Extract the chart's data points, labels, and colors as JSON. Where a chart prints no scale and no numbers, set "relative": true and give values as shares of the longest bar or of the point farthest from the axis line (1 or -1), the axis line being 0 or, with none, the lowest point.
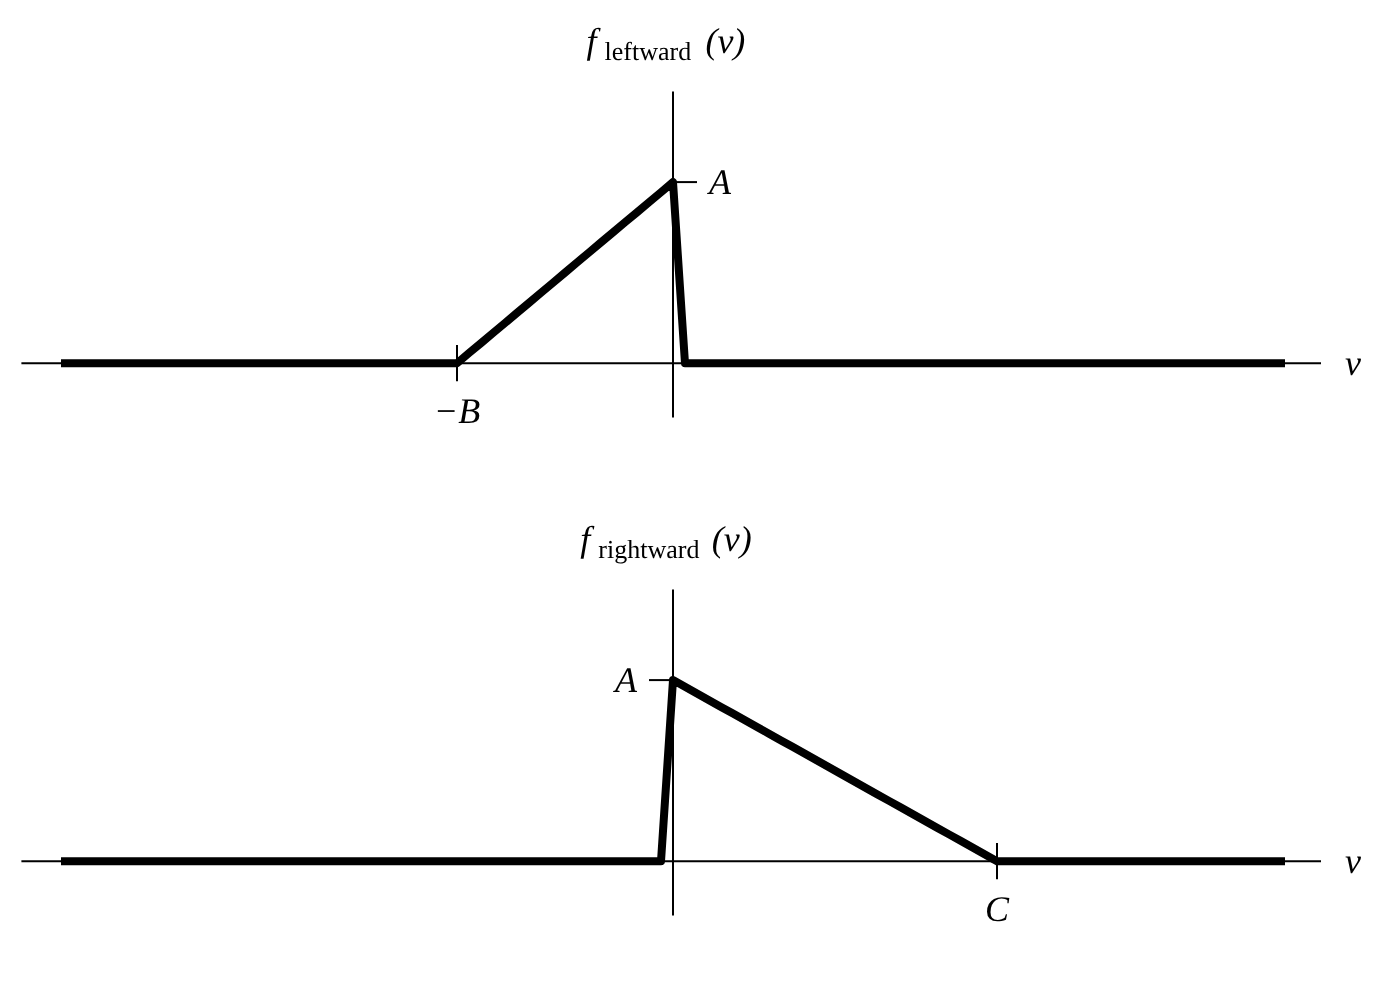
{
  "chart_data": [
    {
      "type": "line",
      "relative": true,
      "ylabel": "f$_{leftward}$(v)",
      "xlabel": "v",
      "annotations": [
        "A",
        "−B"
      ],
      "categories": [
        null,
        null,
        null,
        null,
        null,
        null,
        null,
        null,
        null,
        null,
        null,
        null,
        null,
        null,
        null,
        null,
        null,
        null,
        null,
        null,
        null,
        null,
        null,
        null,
        null,
        null,
        null,
        null,
        null,
        null,
        null,
        null,
        null,
        null,
        null,
        null,
        null,
        null,
        null,
        null,
        null,
        null,
        null,
        null,
        null,
        null,
        null,
        null,
        null,
        null,
        null,
        null,
        null,
        null,
        null,
        null,
        null,
        null,
        null,
        null,
        null,
        null,
        null,
        null,
        null,
        null,
        null,
        null,
        null,
        null,
        null,
        null,
        null,
        null,
        null,
        null,
        null,
        null,
        null,
        null,
        null,
        null,
        null,
        null,
        null,
        null,
        null,
        null,
        null,
        null,
        null,
        null,
        null,
        null,
        null,
        null,
        null,
        null,
        null,
        null,
        null,
        null,
        null
      ],
      "series": [
        {
          "color": "#000000",
          "values": [
            0,
            0,
            0,
            0,
            0,
            0,
            0,
            0,
            0,
            0,
            0,
            0,
            0,
            0,
            0,
            0,
            0,
            0,
            0,
            0,
            0,
            0,
            0,
            0,
            0,
            0,
            0,
            0,
            0,
            0,
            0,
            0,
            0,
            0,
            0.056,
            0.111,
            0.167,
            0.222,
            0.278,
            0.333,
            0.389,
            0.444,
            0.5,
            0.556,
            0.611,
            0.667,
            0.722,
            0.778,
            0.833,
            0.889,
            0.944,
            1,
            0,
            0,
            0,
            0,
            0,
            0,
            0,
            0,
            0,
            0,
            0,
            0,
            0,
            0,
            0,
            0,
            0,
            0,
            0,
            0,
            0,
            0,
            0,
            0,
            0,
            0,
            0,
            0,
            0,
            0,
            0,
            0,
            0,
            0,
            0,
            0,
            0,
            0,
            0,
            0,
            0,
            0,
            0,
            0,
            0,
            0,
            0,
            0,
            0,
            0,
            0
          ]
        }
      ]
    },
    {
      "type": "line",
      "relative": true,
      "ylabel": "f$_{rightward}$(v)",
      "xlabel": "v",
      "annotations": [
        "A",
        "C"
      ],
      "categories": [
        null,
        null,
        null,
        null,
        null,
        null,
        null,
        null,
        null,
        null,
        null,
        null,
        null,
        null,
        null,
        null,
        null,
        null,
        null,
        null,
        null,
        null,
        null,
        null,
        null,
        null,
        null,
        null,
        null,
        null,
        null,
        null,
        null,
        null,
        null,
        null,
        null,
        null,
        null,
        null,
        null,
        null,
        null,
        null,
        null,
        null,
        null,
        null,
        null,
        null,
        null,
        null,
        null,
        null,
        null,
        null,
        null,
        null,
        null,
        null,
        null,
        null,
        null,
        null,
        null,
        null,
        null,
        null,
        null,
        null,
        null,
        null,
        null,
        null,
        null,
        null,
        null,
        null,
        null,
        null,
        null,
        null,
        null,
        null,
        null,
        null,
        null,
        null,
        null,
        null,
        null,
        null,
        null,
        null,
        null,
        null,
        null,
        null,
        null,
        null,
        null,
        null,
        null
      ],
      "series": [
        {
          "color": "#000000",
          "values": [
            0,
            0,
            0,
            0,
            0,
            0,
            0,
            0,
            0,
            0,
            0,
            0,
            0,
            0,
            0,
            0,
            0,
            0,
            0,
            0,
            0,
            0,
            0,
            0,
            0,
            0,
            0,
            0,
            0,
            0,
            0,
            0,
            0,
            0,
            0,
            0,
            0,
            0,
            0,
            0,
            0,
            0,
            0,
            0,
            0,
            0,
            0,
            0,
            0,
            0,
            0,
            1,
            0.963,
            0.926,
            0.889,
            0.852,
            0.815,
            0.778,
            0.741,
            0.704,
            0.667,
            0.63,
            0.593,
            0.556,
            0.519,
            0.481,
            0.444,
            0.407,
            0.37,
            0.333,
            0.296,
            0.259,
            0.222,
            0.185,
            0.148,
            0.111,
            0.074,
            0.037,
            0,
            0,
            0,
            0,
            0,
            0,
            0,
            0,
            0,
            0,
            0,
            0,
            0,
            0,
            0,
            0,
            0,
            0,
            0,
            0,
            0,
            0,
            0,
            0,
            0
          ]
        }
      ]
    }
  ]
}
